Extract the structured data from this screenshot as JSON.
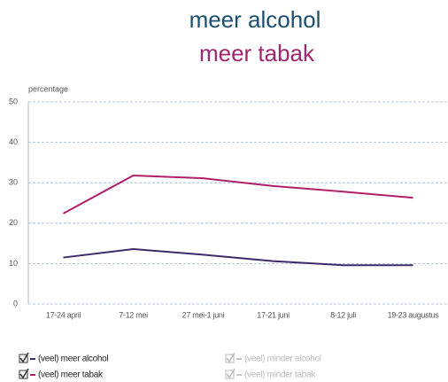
{
  "chart_data": {
    "type": "line",
    "title": "meer alcohol",
    "subtitle": "meer tabak",
    "y_label": "percentage",
    "categories": [
      "17-24 april",
      "7-12 mei",
      "27 mei-1 juni",
      "17-21 juni",
      "8-12 juli",
      "19-23 augustus"
    ],
    "series": [
      {
        "name": "(veel) meer alcohol",
        "color": "#3d2a6b",
        "visible": true,
        "values": [
          11.5,
          13.6,
          12.2,
          10.6,
          9.6,
          9.6
        ]
      },
      {
        "name": "(veel) meer tabak",
        "color": "#b0206a",
        "visible": true,
        "values": [
          22.4,
          31.8,
          31.1,
          29.2,
          27.8,
          26.3
        ]
      },
      {
        "name": "(veel) minder alcohol",
        "color": "#c8c8c8",
        "visible": false,
        "values": [
          null,
          null,
          null,
          null,
          null,
          null
        ]
      },
      {
        "name": "(veel) minder tabak",
        "color": "#c8c8c8",
        "visible": false,
        "values": [
          null,
          null,
          null,
          null,
          null,
          null
        ]
      }
    ],
    "ylim": [
      0,
      50
    ],
    "yticks": [
      0,
      10,
      20,
      30,
      40,
      50
    ],
    "grid": true
  }
}
